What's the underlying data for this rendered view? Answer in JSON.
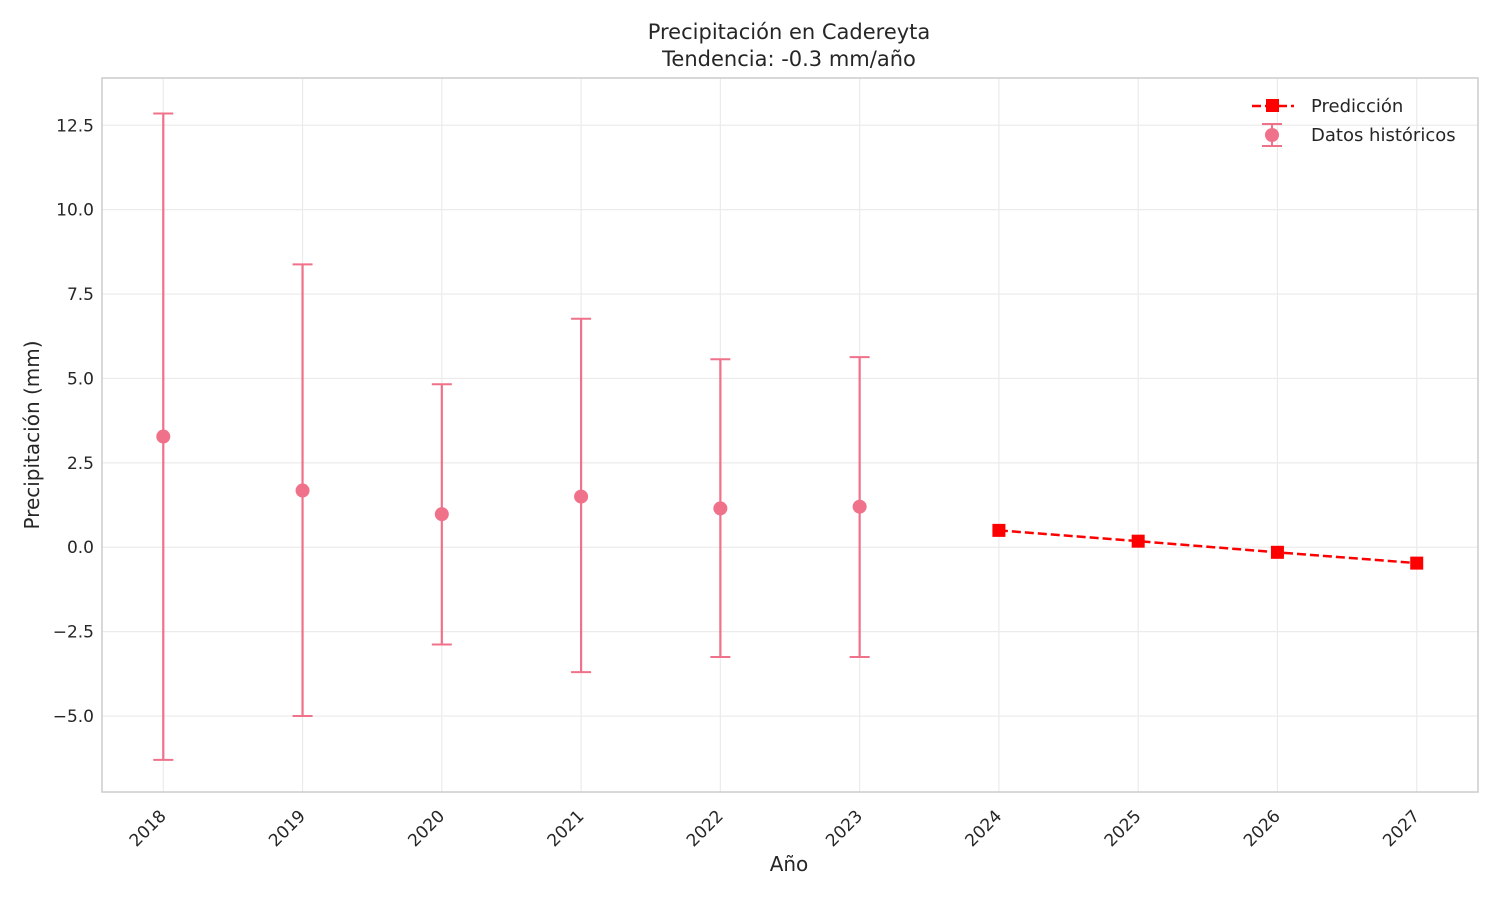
{
  "chart_data": {
    "type": "line",
    "title": "Precipitación en Cadereyta",
    "subtitle": "Tendencia: -0.3 mm/año",
    "xlabel": "Año",
    "ylabel": "Precipitación (mm)",
    "xlim": [
      2017.56,
      2027.44
    ],
    "ylim": [
      -7.25,
      13.9
    ],
    "x_ticks": [
      "2018",
      "2019",
      "2020",
      "2021",
      "2022",
      "2023",
      "2024",
      "2025",
      "2026",
      "2027"
    ],
    "y_ticks": [
      -5.0,
      -2.5,
      0.0,
      2.5,
      5.0,
      7.5,
      10.0,
      12.5
    ],
    "y_tick_labels": [
      "−5.0",
      "−2.5",
      "0.0",
      "2.5",
      "5.0",
      "7.5",
      "10.0",
      "12.5"
    ],
    "grid": true,
    "legend_position": "top-right",
    "colors": {
      "historical": "#f0718a",
      "prediction": "#ff0000",
      "grid": "#ebebeb",
      "frame": "#cccccc"
    },
    "series": [
      {
        "name": "Predicción",
        "style": "dashed-line-square-markers",
        "x": [
          2024,
          2025,
          2026,
          2027
        ],
        "y": [
          0.5,
          0.18,
          -0.15,
          -0.47
        ]
      },
      {
        "name": "Datos históricos",
        "style": "errorbar-circle-markers",
        "x": [
          2018,
          2019,
          2020,
          2021,
          2022,
          2023
        ],
        "y": [
          3.28,
          1.68,
          0.98,
          1.5,
          1.15,
          1.2
        ],
        "err_low": [
          -6.3,
          -5.0,
          -2.88,
          -3.7,
          -3.25,
          -3.25
        ],
        "err_high": [
          12.85,
          8.38,
          4.83,
          6.77,
          5.57,
          5.63
        ]
      }
    ]
  }
}
